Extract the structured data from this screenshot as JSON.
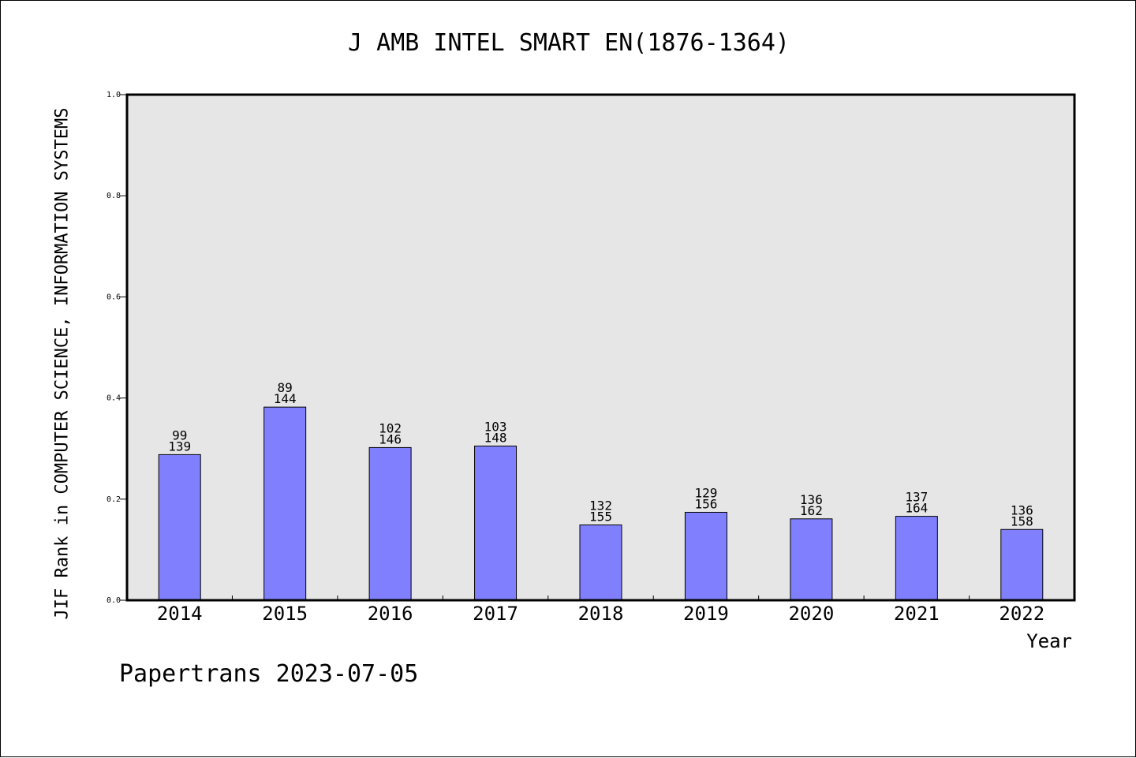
{
  "chart_data": {
    "type": "bar",
    "title": "J AMB INTEL SMART EN(1876-1364)",
    "xlabel": "Year",
    "ylabel": "JIF Rank in COMPUTER SCIENCE, INFORMATION SYSTEMS",
    "ylim": [
      0,
      1.0
    ],
    "yticks": [
      "0.0",
      "0.2",
      "0.4",
      "0.6",
      "0.8",
      "1.0"
    ],
    "grid": false,
    "categories": [
      "2014",
      "2015",
      "2016",
      "2017",
      "2018",
      "2019",
      "2020",
      "2021",
      "2022"
    ],
    "values": [
      0.288,
      0.382,
      0.302,
      0.305,
      0.149,
      0.174,
      0.161,
      0.166,
      0.14
    ],
    "rank": [
      "99",
      "89",
      "102",
      "103",
      "132",
      "129",
      "136",
      "137",
      "136"
    ],
    "total": [
      "139",
      "144",
      "146",
      "148",
      "155",
      "156",
      "162",
      "164",
      "158"
    ],
    "colors": {
      "bar": "#8080ff",
      "plot_bg": "#e6e6e6"
    }
  },
  "footer": "Papertrans 2023-07-05"
}
